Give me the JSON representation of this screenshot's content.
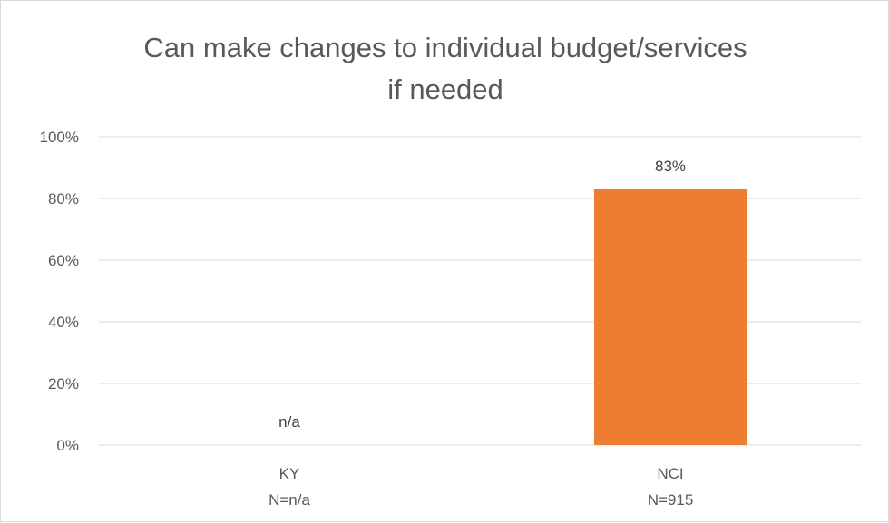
{
  "chart_data": {
    "type": "bar",
    "title_lines": [
      "Can make changes to individual budget/services",
      "if needed"
    ],
    "categories": [
      {
        "name": "KY",
        "sub": "N=n/a"
      },
      {
        "name": "NCI",
        "sub": "N=915"
      }
    ],
    "values": [
      null,
      83
    ],
    "data_labels": [
      "n/a",
      "83%"
    ],
    "ylim": [
      0,
      100
    ],
    "yticks": [
      "0%",
      "20%",
      "40%",
      "60%",
      "80%",
      "100%"
    ],
    "grid": true,
    "legend": "none",
    "bar_color": "#ED7D31",
    "grid_color": "#D9D9D9"
  }
}
